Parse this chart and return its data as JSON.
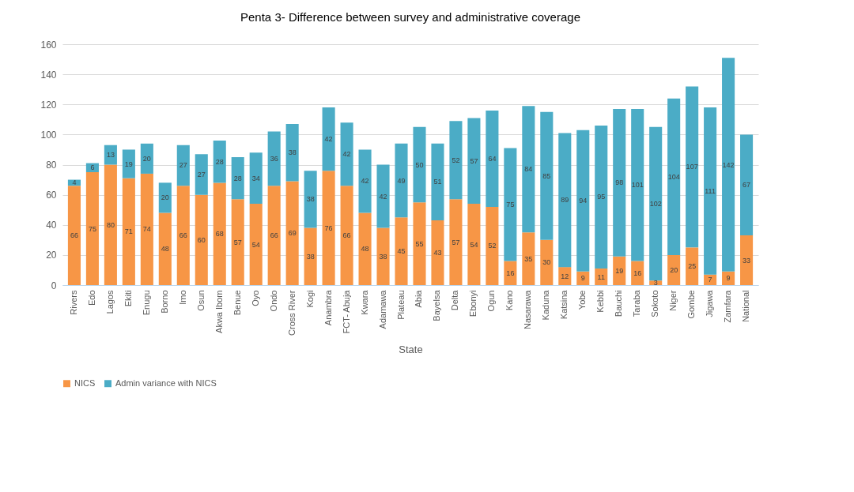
{
  "chart_data": {
    "type": "bar",
    "title": "Penta 3- Difference between survey and administrative coverage",
    "xlabel": "State",
    "categories": [
      "Rivers",
      "Edo",
      "Lagos",
      "Ekiti",
      "Enugu",
      "Borno",
      "Imo",
      "Osun",
      "Akwa Ibom",
      "Benue",
      "Oyo",
      "Ondo",
      "Cross River",
      "Kogi",
      "Anambra",
      "FCT- Abuja",
      "Kwara",
      "Adamawa",
      "Plateau",
      "Abia",
      "Bayelsa",
      "Delta",
      "Ebonyi",
      "Ogun",
      "Kano",
      "Nasarawa",
      "Kaduna",
      "Katsina",
      "Yobe",
      "Kebbi",
      "Bauchi",
      "Taraba",
      "Sokoto",
      "Niger",
      "Gombe",
      "Jigawa",
      "Zamfara",
      "National"
    ],
    "series": [
      {
        "name": "NICS",
        "color": "#f79646",
        "values": [
          66,
          75,
          80,
          71,
          74,
          48,
          66,
          60,
          68,
          57,
          54,
          66,
          69,
          38,
          76,
          66,
          48,
          38,
          45,
          55,
          43,
          57,
          54,
          52,
          16,
          35,
          30,
          12,
          9,
          11,
          19,
          16,
          3,
          20,
          25,
          7,
          9,
          33
        ]
      },
      {
        "name": "Admin variance with NICS",
        "color": "#4bacc6",
        "values": [
          4,
          6,
          13,
          19,
          20,
          20,
          27,
          27,
          28,
          28,
          34,
          36,
          38,
          38,
          42,
          42,
          42,
          42,
          49,
          50,
          51,
          52,
          57,
          64,
          75,
          84,
          85,
          89,
          94,
          95,
          98,
          101,
          102,
          104,
          107,
          111,
          142,
          67
        ]
      }
    ],
    "stacked": true,
    "data_labels": true,
    "ylim": [
      0,
      160
    ],
    "yticks": [
      0,
      20,
      40,
      60,
      80,
      100,
      120,
      140,
      160
    ],
    "grid": "y",
    "legend": "bottom"
  }
}
